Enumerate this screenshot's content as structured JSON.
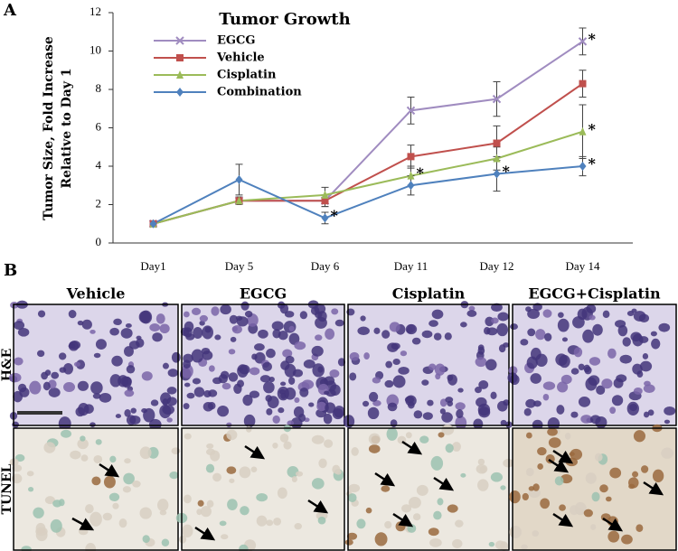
{
  "panel_labels": [
    "A",
    "B"
  ],
  "chart_data": {
    "type": "line",
    "title": "Tumor Growth",
    "y_label": [
      "Tumor Size, Fold Increase",
      "Relative to Day 1"
    ],
    "categories": [
      "Day1",
      "Day 5",
      "Day 6",
      "Day 11",
      "Day 12",
      "Day 14"
    ],
    "ylim": [
      0,
      12
    ],
    "yticks": [
      0,
      2,
      4,
      6,
      8,
      10,
      12
    ],
    "legend": "upper left",
    "series": [
      {
        "name": "EGCG",
        "color": "#a08cc0",
        "marker": "x",
        "values": [
          1.0,
          2.2,
          2.2,
          6.9,
          7.5,
          10.5
        ],
        "errors": [
          0.1,
          0.2,
          0.3,
          0.7,
          0.9,
          0.7
        ]
      },
      {
        "name": "Vehicle",
        "color": "#c0504d",
        "marker": "square",
        "values": [
          1.0,
          2.2,
          2.2,
          4.5,
          5.2,
          8.3
        ],
        "errors": [
          0.1,
          0.2,
          0.3,
          0.6,
          0.9,
          0.7
        ]
      },
      {
        "name": "Cisplatin",
        "color": "#9bbb59",
        "marker": "triangle",
        "values": [
          1.0,
          2.2,
          2.5,
          3.5,
          4.4,
          5.8
        ],
        "errors": [
          0.1,
          0.2,
          0.4,
          0.5,
          0.6,
          1.4
        ]
      },
      {
        "name": "Combination",
        "color": "#4f81bd",
        "marker": "diamond",
        "values": [
          1.0,
          3.3,
          1.3,
          3.0,
          3.6,
          4.0
        ],
        "errors": [
          0.1,
          0.8,
          0.3,
          0.5,
          0.9,
          0.5
        ]
      }
    ],
    "annotations": [
      {
        "text": "*",
        "series": 0,
        "category": 5
      },
      {
        "text": "*",
        "series": 2,
        "category": 5
      },
      {
        "text": "*",
        "series": 3,
        "category": 5
      },
      {
        "text": "*",
        "series": 3,
        "category": 2
      },
      {
        "text": "*",
        "series": 2,
        "category": 3
      },
      {
        "text": "*",
        "series": 3,
        "category": 4
      }
    ]
  },
  "panel_b": {
    "column_headers": [
      "Vehicle",
      "EGCG",
      "Cisplatin",
      "EGCG+Cisplatin"
    ],
    "row_labels": [
      "H&E",
      "TUNEL"
    ]
  }
}
